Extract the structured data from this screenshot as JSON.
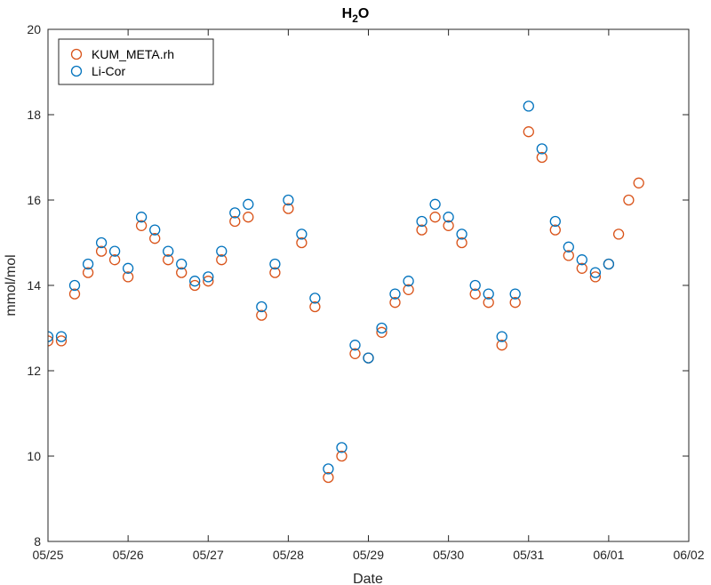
{
  "chart_data": {
    "type": "scatter",
    "title_main": "H",
    "title_sub": "2",
    "title_tail": "O",
    "xlabel": "Date",
    "ylabel": "mmol/mol",
    "xlim": [
      "05/25",
      "06/02"
    ],
    "ylim": [
      8,
      20
    ],
    "x_ticks": [
      "05/25",
      "05/26",
      "05/27",
      "05/28",
      "05/29",
      "05/30",
      "05/31",
      "06/01",
      "06/02"
    ],
    "y_ticks": [
      8,
      10,
      12,
      14,
      16,
      18,
      20
    ],
    "legend_position": "top-left",
    "grid": false,
    "marker": "open-circle",
    "series": [
      {
        "name": "KUM_META.rh",
        "color": "#D95319",
        "x": [
          "05/25 00:00",
          "05/25 04:00",
          "05/25 08:00",
          "05/25 12:00",
          "05/25 16:00",
          "05/25 20:00",
          "05/26 00:00",
          "05/26 04:00",
          "05/26 08:00",
          "05/26 12:00",
          "05/26 16:00",
          "05/26 20:00",
          "05/27 00:00",
          "05/27 04:00",
          "05/27 08:00",
          "05/27 12:00",
          "05/27 16:00",
          "05/27 20:00",
          "05/28 00:00",
          "05/28 04:00",
          "05/28 08:00",
          "05/28 12:00",
          "05/28 16:00",
          "05/28 20:00",
          "05/29 00:00",
          "05/29 04:00",
          "05/29 08:00",
          "05/29 12:00",
          "05/29 16:00",
          "05/29 20:00",
          "05/30 00:00",
          "05/30 04:00",
          "05/30 08:00",
          "05/30 12:00",
          "05/30 16:00",
          "05/30 20:00",
          "05/31 00:00",
          "05/31 04:00",
          "05/31 08:00",
          "05/31 12:00",
          "05/31 16:00",
          "05/31 20:00",
          "06/01 00:00",
          "06/01 03:00",
          "06/01 06:00",
          "06/01 09:00"
        ],
        "y": [
          12.7,
          12.7,
          13.8,
          14.3,
          14.8,
          14.6,
          14.2,
          15.4,
          15.1,
          14.6,
          14.3,
          14.0,
          14.1,
          14.6,
          15.5,
          15.6,
          13.3,
          14.3,
          15.8,
          15.0,
          13.5,
          9.5,
          10.0,
          12.4,
          12.3,
          12.9,
          13.6,
          13.9,
          15.3,
          15.6,
          15.4,
          15.0,
          13.8,
          13.6,
          12.6,
          13.6,
          17.6,
          17.0,
          15.3,
          14.7,
          14.4,
          14.2,
          14.5,
          15.2,
          16.0,
          16.4
        ]
      },
      {
        "name": "Li-Cor",
        "color": "#0072BD",
        "x": [
          "05/25 00:00",
          "05/25 04:00",
          "05/25 08:00",
          "05/25 12:00",
          "05/25 16:00",
          "05/25 20:00",
          "05/26 00:00",
          "05/26 04:00",
          "05/26 08:00",
          "05/26 12:00",
          "05/26 16:00",
          "05/26 20:00",
          "05/27 00:00",
          "05/27 04:00",
          "05/27 08:00",
          "05/27 12:00",
          "05/27 16:00",
          "05/27 20:00",
          "05/28 00:00",
          "05/28 04:00",
          "05/28 08:00",
          "05/28 12:00",
          "05/28 16:00",
          "05/28 20:00",
          "05/29 00:00",
          "05/29 04:00",
          "05/29 08:00",
          "05/29 12:00",
          "05/29 16:00",
          "05/29 20:00",
          "05/30 00:00",
          "05/30 04:00",
          "05/30 08:00",
          "05/30 12:00",
          "05/30 16:00",
          "05/30 20:00",
          "05/31 00:00",
          "05/31 04:00",
          "05/31 08:00",
          "05/31 12:00",
          "05/31 16:00",
          "05/31 20:00",
          "06/01 00:00"
        ],
        "y": [
          12.8,
          12.8,
          14.0,
          14.5,
          15.0,
          14.8,
          14.4,
          15.6,
          15.3,
          14.8,
          14.5,
          14.1,
          14.2,
          14.8,
          15.7,
          15.9,
          13.5,
          14.5,
          16.0,
          15.2,
          13.7,
          9.7,
          10.2,
          12.6,
          12.3,
          13.0,
          13.8,
          14.1,
          15.5,
          15.9,
          15.6,
          15.2,
          14.0,
          13.8,
          12.8,
          13.8,
          18.2,
          17.2,
          15.5,
          14.9,
          14.6,
          14.3,
          14.5
        ]
      }
    ]
  }
}
